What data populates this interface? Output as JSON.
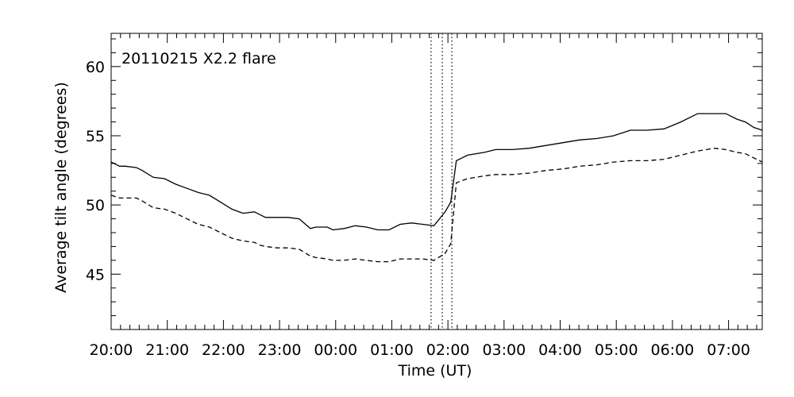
{
  "chart_data": {
    "type": "line",
    "title": "",
    "annotation": "20110215 X2.2 flare",
    "xlabel": "Time (UT)",
    "ylabel": "Average tilt angle (degrees)",
    "xlim": [
      0,
      11.6
    ],
    "ylim": [
      41.0,
      62.4
    ],
    "grid": false,
    "x_tick_labels": [
      "20:00",
      "21:00",
      "22:00",
      "23:00",
      "00:00",
      "01:00",
      "02:00",
      "03:00",
      "04:00",
      "05:00",
      "06:00",
      "07:00"
    ],
    "x_tick_values": [
      0,
      1,
      2,
      3,
      4,
      5,
      6,
      7,
      8,
      9,
      10,
      11
    ],
    "y_ticks": [
      45,
      50,
      55,
      60
    ],
    "vertical_lines": [
      5.7,
      5.9,
      6.07
    ],
    "x": [
      0,
      0.15,
      0.25,
      0.45,
      0.55,
      0.75,
      0.95,
      1.15,
      1.35,
      1.55,
      1.75,
      1.95,
      2.15,
      2.35,
      2.55,
      2.65,
      2.75,
      2.95,
      3.15,
      3.35,
      3.55,
      3.65,
      3.85,
      3.95,
      4.15,
      4.35,
      4.55,
      4.75,
      4.95,
      5.15,
      5.35,
      5.55,
      5.75,
      5.95,
      6.05,
      6.15,
      6.35,
      6.65,
      6.85,
      7.15,
      7.45,
      7.75,
      8.05,
      8.35,
      8.65,
      8.95,
      9.25,
      9.55,
      9.85,
      10.15,
      10.45,
      10.75,
      10.95,
      11.15,
      11.3,
      11.45,
      11.6
    ],
    "series": [
      {
        "style": "solid",
        "values": [
          53.1,
          52.8,
          52.8,
          52.7,
          52.5,
          52.0,
          51.9,
          51.5,
          51.2,
          50.9,
          50.7,
          50.2,
          49.7,
          49.4,
          49.5,
          49.3,
          49.1,
          49.1,
          49.1,
          49.0,
          48.3,
          48.4,
          48.4,
          48.2,
          48.3,
          48.5,
          48.4,
          48.2,
          48.2,
          48.6,
          48.7,
          48.6,
          48.5,
          49.5,
          50.2,
          53.2,
          53.6,
          53.8,
          54.0,
          54.0,
          54.1,
          54.3,
          54.5,
          54.7,
          54.8,
          55.0,
          55.4,
          55.4,
          55.5,
          56.0,
          56.6,
          56.6,
          56.6,
          56.2,
          56.0,
          55.6,
          55.4
        ]
      },
      {
        "style": "dashed",
        "values": [
          50.7,
          50.5,
          50.5,
          50.5,
          50.3,
          49.8,
          49.7,
          49.4,
          49.0,
          48.6,
          48.4,
          48.0,
          47.6,
          47.4,
          47.3,
          47.1,
          47.0,
          46.9,
          46.9,
          46.8,
          46.3,
          46.2,
          46.1,
          46.0,
          46.0,
          46.1,
          46.0,
          45.9,
          45.9,
          46.1,
          46.1,
          46.1,
          46.0,
          46.5,
          47.2,
          51.6,
          51.9,
          52.1,
          52.2,
          52.2,
          52.3,
          52.5,
          52.6,
          52.8,
          52.9,
          53.1,
          53.2,
          53.2,
          53.3,
          53.6,
          53.9,
          54.1,
          54.0,
          53.8,
          53.7,
          53.4,
          53.1
        ]
      }
    ]
  }
}
